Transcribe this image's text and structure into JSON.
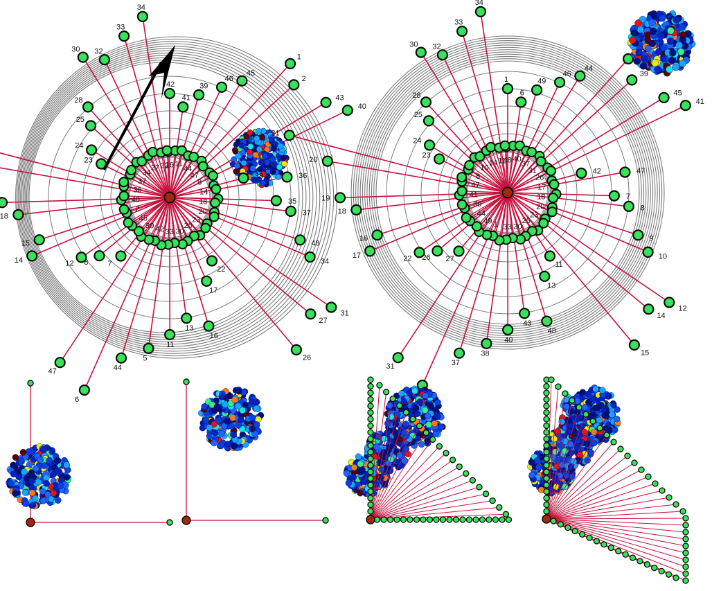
{
  "colors": {
    "edge": "#c8103e",
    "node_fill": "#38e25a",
    "node_stroke": "#0a0a0a",
    "center_fill": "#a5260c",
    "ring": "#7a7a7a",
    "arrow": "#000000",
    "blob_palette": [
      "#00107a",
      "#0022c0",
      "#0a3fe0",
      "#1e64ff",
      "#19a4ff",
      "#1ee0e6",
      "#37f08c",
      "#f0e61e",
      "#ff7a14",
      "#e61414",
      "#5a0000"
    ]
  },
  "graph_left": {
    "node_labels": [
      "42",
      "41",
      "39",
      "46",
      "45",
      "1",
      "2",
      "43",
      "40",
      "38",
      "36",
      "35",
      "37",
      "48",
      "34",
      "31",
      "27",
      "26",
      "22",
      "17",
      "16",
      "13",
      "11",
      "5",
      "44",
      "6",
      "47",
      "7",
      "8",
      "12",
      "14",
      "15",
      "18",
      "19",
      "20",
      "21",
      "23",
      "24",
      "25",
      "28",
      "30",
      "32",
      "33",
      "34"
    ]
  },
  "graph_right": {
    "node_labels": [
      "1",
      "6",
      "49",
      "46",
      "44",
      "5",
      "39",
      "45",
      "41",
      "42",
      "47",
      "7",
      "8",
      "9",
      "10",
      "12",
      "14",
      "15",
      "11",
      "13",
      "48",
      "43",
      "40",
      "38",
      "37",
      "34",
      "31",
      "27",
      "26",
      "22",
      "17",
      "16",
      "18",
      "19",
      "20",
      "21",
      "23",
      "24",
      "25",
      "28",
      "30",
      "32",
      "33",
      "34"
    ]
  },
  "icons": [
    "direction-arrow-icon",
    "spectral-blob-icon"
  ]
}
